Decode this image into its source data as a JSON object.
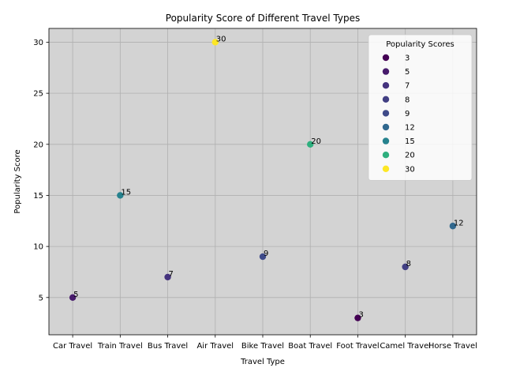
{
  "chart_data": {
    "type": "scatter",
    "title": "Popularity Score of Different Travel Types",
    "xlabel": "Travel Type",
    "ylabel": "Popularity Score",
    "categories": [
      "Car Travel",
      "Train Travel",
      "Bus Travel",
      "Air Travel",
      "Bike Travel",
      "Boat Travel",
      "Foot Travel",
      "Camel Travel",
      "Horse Travel"
    ],
    "values": [
      5,
      15,
      7,
      30,
      9,
      20,
      3,
      8,
      12
    ],
    "ylim": [
      1.35,
      31.35
    ],
    "yticks": [
      5,
      10,
      15,
      20,
      25,
      30
    ],
    "grid": true,
    "background_color": "#d3d3d3",
    "colormap": "viridis",
    "legend": {
      "title": "Popularity Scores",
      "placement": "top-right",
      "entries": [
        "3",
        "5",
        "7",
        "8",
        "9",
        "12",
        "15",
        "20",
        "30"
      ]
    }
  }
}
